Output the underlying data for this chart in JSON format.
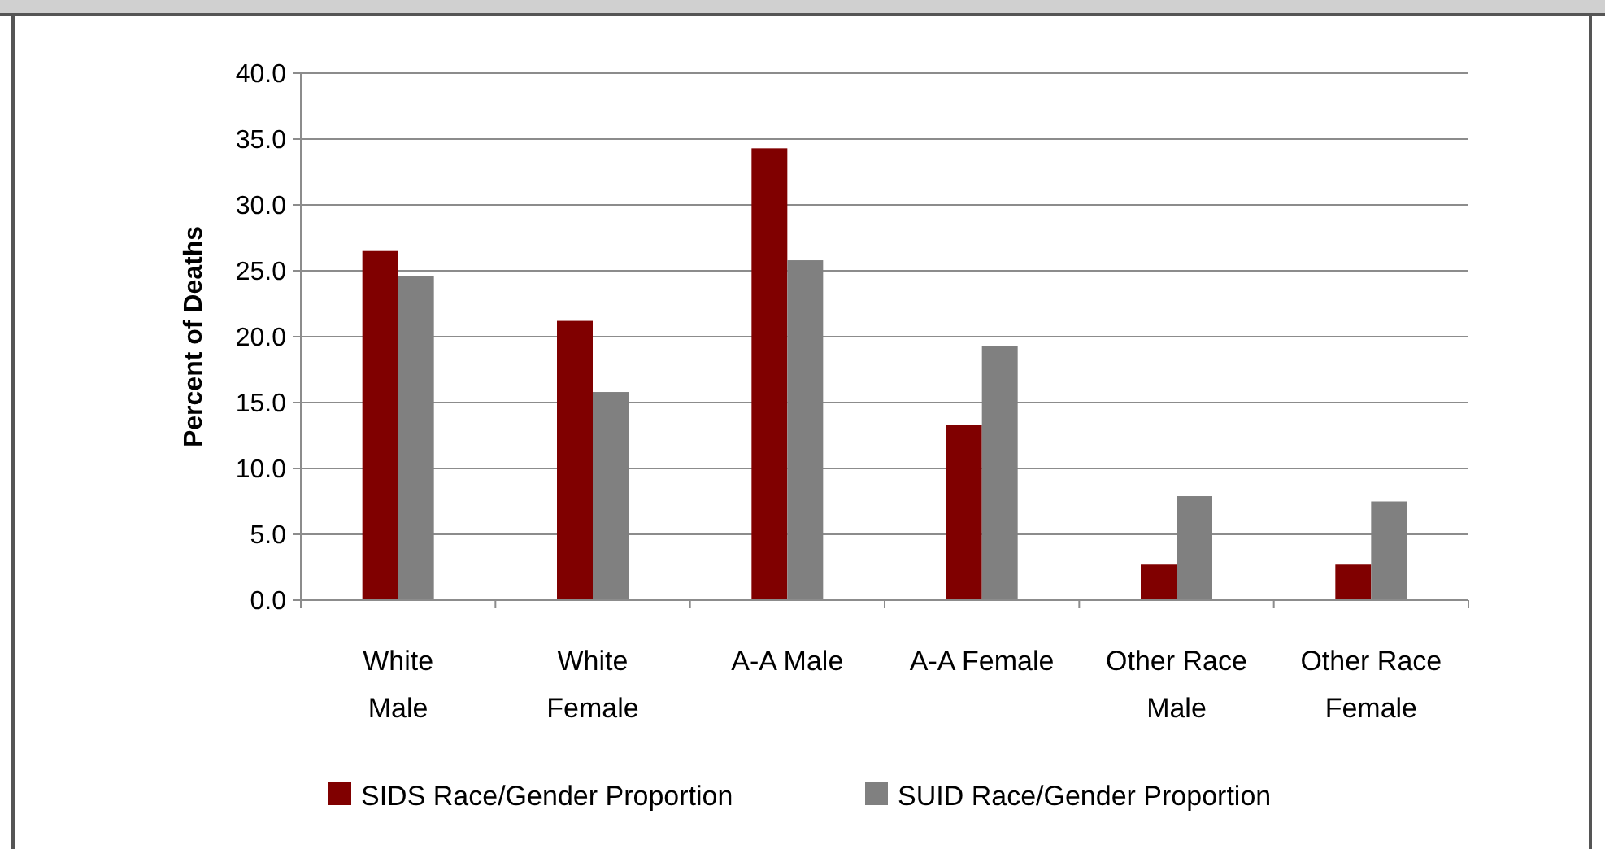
{
  "chart_data": {
    "type": "bar",
    "ylabel": "Percent of Deaths",
    "categories": [
      "White\nMale",
      "White\nFemale",
      "A-A Male",
      "A-A Female",
      "Other Race\nMale",
      "Other Race\nFemale"
    ],
    "series": [
      {
        "name": "SIDS Race/Gender Proportion",
        "color": "#800000",
        "values": [
          26.5,
          21.2,
          34.3,
          13.3,
          2.7,
          2.7
        ]
      },
      {
        "name": "SUID Race/Gender Proportion",
        "color": "#808080",
        "values": [
          24.6,
          15.8,
          25.8,
          19.3,
          7.9,
          7.5
        ]
      }
    ],
    "ylim": [
      0,
      40
    ],
    "yticks": [
      {
        "value": 0,
        "label": "0.0"
      },
      {
        "value": 5,
        "label": "5.0"
      },
      {
        "value": 10,
        "label": "10.0"
      },
      {
        "value": 15,
        "label": "15.0"
      },
      {
        "value": 20,
        "label": "20.0"
      },
      {
        "value": 25,
        "label": "25.0"
      },
      {
        "value": 30,
        "label": "30.0"
      },
      {
        "value": 35,
        "label": "35.0"
      },
      {
        "value": 40,
        "label": "40.0"
      }
    ],
    "grid": "y",
    "legend": "bottom"
  }
}
